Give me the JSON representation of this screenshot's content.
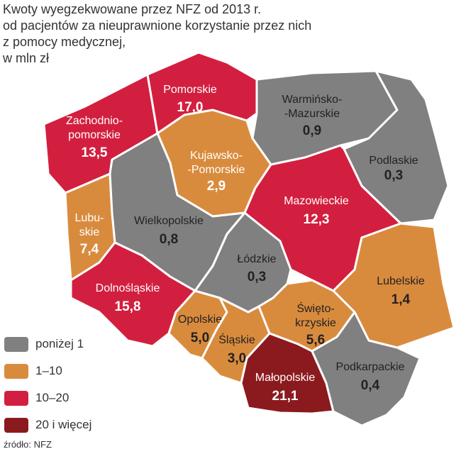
{
  "title_lines": [
    "Kwoty wyegzekwowane przez NFZ od 2013 r.",
    "od pacjentów za nieuprawnione korzystanie przez nich",
    "z pomocy medycznej,",
    "w mln zł"
  ],
  "colors": {
    "below_1": "#808080",
    "1_10": "#d98b3d",
    "10_20": "#d31f3f",
    "20_plus": "#8b1a1e"
  },
  "legend": [
    {
      "label": "poniżej 1",
      "color": "#808080"
    },
    {
      "label": "1–10",
      "color": "#d98b3d"
    },
    {
      "label": "10–20",
      "color": "#d31f3f"
    },
    {
      "label": "20 i więcej",
      "color": "#8b1a1e"
    }
  ],
  "regions": [
    {
      "name_lines": [
        "Zachodnio-",
        "pomorskie"
      ],
      "value": "13,5",
      "color": "#d31f3f"
    },
    {
      "name_lines": [
        "Pomorskie"
      ],
      "value": "17,0",
      "color": "#d31f3f"
    },
    {
      "name_lines": [
        "Warmińsko-",
        "-Mazurskie"
      ],
      "value": "0,9",
      "color": "#808080"
    },
    {
      "name_lines": [
        "Podlaskie"
      ],
      "value": "0,3",
      "color": "#808080"
    },
    {
      "name_lines": [
        "Kujawsko-",
        "-Pomorskie"
      ],
      "value": "2,9",
      "color": "#d98b3d"
    },
    {
      "name_lines": [
        "Lubu-",
        "skie"
      ],
      "value": "7,4",
      "color": "#d98b3d"
    },
    {
      "name_lines": [
        "Wielkopolskie"
      ],
      "value": "0,8",
      "color": "#808080"
    },
    {
      "name_lines": [
        "Mazowieckie"
      ],
      "value": "12,3",
      "color": "#d31f3f"
    },
    {
      "name_lines": [
        "Łódzkie"
      ],
      "value": "0,3",
      "color": "#808080"
    },
    {
      "name_lines": [
        "Lubelskie"
      ],
      "value": "1,4",
      "color": "#d98b3d"
    },
    {
      "name_lines": [
        "Dolnośląskie"
      ],
      "value": "15,8",
      "color": "#d31f3f"
    },
    {
      "name_lines": [
        "Opolskie"
      ],
      "value": "5,0",
      "color": "#d98b3d"
    },
    {
      "name_lines": [
        "Śląskie"
      ],
      "value": "3,0",
      "color": "#d98b3d"
    },
    {
      "name_lines": [
        "Święto-",
        "krzyskie"
      ],
      "value": "5,6",
      "color": "#d98b3d"
    },
    {
      "name_lines": [
        "Małopolskie"
      ],
      "value": "21,1",
      "color": "#8b1a1e"
    },
    {
      "name_lines": [
        "Podkarpackie"
      ],
      "value": "0,4",
      "color": "#808080"
    }
  ],
  "source": "źródło: NFZ"
}
